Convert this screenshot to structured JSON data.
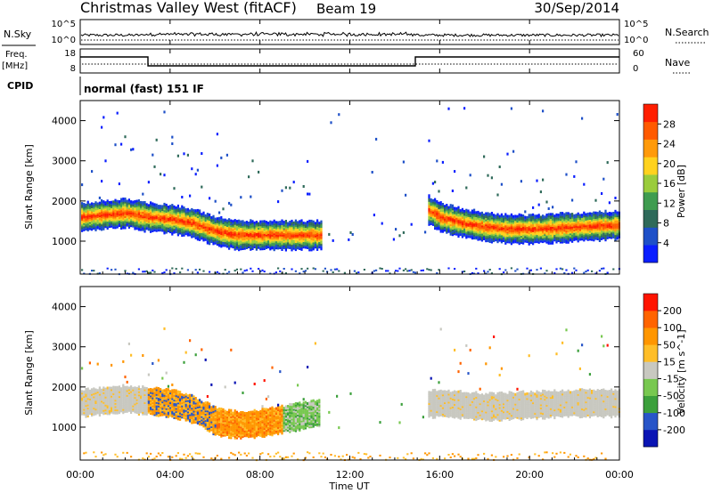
{
  "header": {
    "station": "Christmas Valley West (fitACF)",
    "beam": "Beam 19",
    "date": "30/Sep/2014"
  },
  "mini_panels": {
    "nsky_label": "N.Sky",
    "nsky_ticks": [
      "10^5",
      "10^0"
    ],
    "nsearch_label": "N.Search",
    "nsearch_ticks": [
      "10^5",
      "10^0"
    ],
    "freq_label_line1": "Freq.",
    "freq_label_line2": "[MHz]",
    "freq_ticks": [
      "18",
      "8"
    ],
    "nave_label": "Nave",
    "nave_ticks": [
      "60",
      "0"
    ],
    "cpid_label": "CPID",
    "cpid_value": "normal (fast) 151 IF"
  },
  "x_axis": {
    "title": "Time UT",
    "ticks": [
      "00:00",
      "04:00",
      "08:00",
      "12:00",
      "16:00",
      "20:00",
      "00:00"
    ]
  },
  "colors": {
    "power": [
      "#0a1eff",
      "#1e50c8",
      "#2f6a5a",
      "#3f9c50",
      "#9acc3c",
      "#ffd21e",
      "#ff9a0a",
      "#ff5a00",
      "#ff1e00"
    ],
    "velocity": [
      "#ff1400",
      "#ff6400",
      "#ff9600",
      "#ffbe28",
      "#c8c8c0",
      "#78c850",
      "#3ca03c",
      "#2855c8",
      "#0a14b4"
    ]
  },
  "chart_data": [
    {
      "type": "heatmap",
      "title": "",
      "xlabel": "Time UT",
      "ylabel": "Slant Range [km]",
      "xlim": [
        0,
        24
      ],
      "ylim": [
        180,
        4500
      ],
      "x_ticks": [
        "00:00",
        "04:00",
        "08:00",
        "12:00",
        "16:00",
        "20:00",
        "00:00"
      ],
      "y_ticks": [
        1000,
        2000,
        3000,
        4000
      ],
      "colorbar": {
        "label": "Power [dB]",
        "ticks": [
          4,
          8,
          12,
          16,
          20,
          24,
          28
        ],
        "range": [
          0,
          30
        ]
      },
      "band_center_km": [
        [
          0,
          1600
        ],
        [
          1,
          1650
        ],
        [
          2,
          1700
        ],
        [
          3,
          1600
        ],
        [
          4,
          1550
        ],
        [
          5,
          1450
        ],
        [
          6,
          1250
        ],
        [
          7,
          1150
        ],
        [
          8,
          1150
        ],
        [
          9,
          1150
        ],
        [
          10,
          1150
        ],
        [
          10.7,
          1150
        ],
        [
          15.4,
          1800
        ],
        [
          16,
          1600
        ],
        [
          17,
          1450
        ],
        [
          18,
          1350
        ],
        [
          19,
          1300
        ],
        [
          20,
          1300
        ],
        [
          21,
          1320
        ],
        [
          22,
          1350
        ],
        [
          23,
          1380
        ],
        [
          24,
          1400
        ]
      ]
    },
    {
      "type": "heatmap",
      "title": "",
      "xlabel": "Time UT",
      "ylabel": "Slant Range [km]",
      "xlim": [
        0,
        24
      ],
      "ylim": [
        180,
        4500
      ],
      "x_ticks": [
        "00:00",
        "04:00",
        "08:00",
        "12:00",
        "16:00",
        "20:00",
        "00:00"
      ],
      "y_ticks": [
        1000,
        2000,
        3000,
        4000
      ],
      "colorbar": {
        "label": "Velocity [m s^-1]",
        "ticks": [
          200,
          100,
          50,
          15,
          -15,
          -50,
          -100,
          -200
        ],
        "range": [
          -250,
          250
        ]
      },
      "band_center_km": [
        [
          0,
          1600
        ],
        [
          2,
          1700
        ],
        [
          3,
          1650
        ],
        [
          4,
          1600
        ],
        [
          5,
          1450
        ],
        [
          6,
          1150
        ],
        [
          7,
          1050
        ],
        [
          8,
          1100
        ],
        [
          9,
          1200
        ],
        [
          10,
          1300
        ],
        [
          10.5,
          1350
        ],
        [
          16,
          1600
        ],
        [
          18,
          1500
        ],
        [
          20,
          1550
        ],
        [
          22,
          1600
        ],
        [
          24,
          1600
        ]
      ]
    }
  ]
}
